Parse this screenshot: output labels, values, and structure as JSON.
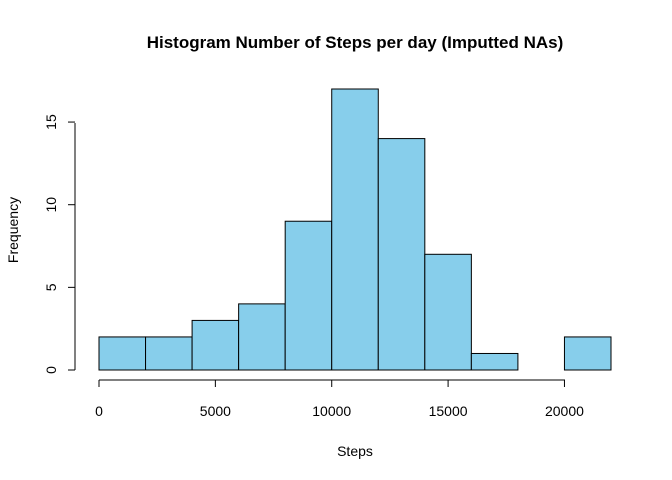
{
  "chart_data": {
    "type": "bar",
    "title": "Histogram Number of Steps per day (Imputted NAs)",
    "xlabel": "Steps",
    "ylabel": "Frequency",
    "bins": [
      {
        "start": 0,
        "end": 2000,
        "count": 2
      },
      {
        "start": 2000,
        "end": 4000,
        "count": 2
      },
      {
        "start": 4000,
        "end": 6000,
        "count": 3
      },
      {
        "start": 6000,
        "end": 8000,
        "count": 4
      },
      {
        "start": 8000,
        "end": 10000,
        "count": 9
      },
      {
        "start": 10000,
        "end": 12000,
        "count": 17
      },
      {
        "start": 12000,
        "end": 14000,
        "count": 14
      },
      {
        "start": 14000,
        "end": 16000,
        "count": 7
      },
      {
        "start": 16000,
        "end": 18000,
        "count": 1
      },
      {
        "start": 18000,
        "end": 20000,
        "count": 0
      },
      {
        "start": 20000,
        "end": 22000,
        "count": 2
      }
    ],
    "xlim": [
      0,
      22000
    ],
    "ylim": [
      0,
      17
    ],
    "x_ticks": [
      "0",
      "5000",
      "10000",
      "15000",
      "20000"
    ],
    "y_ticks": [
      "0",
      "5",
      "10",
      "15"
    ],
    "bar_color": "#87CEEB",
    "grid": false
  }
}
